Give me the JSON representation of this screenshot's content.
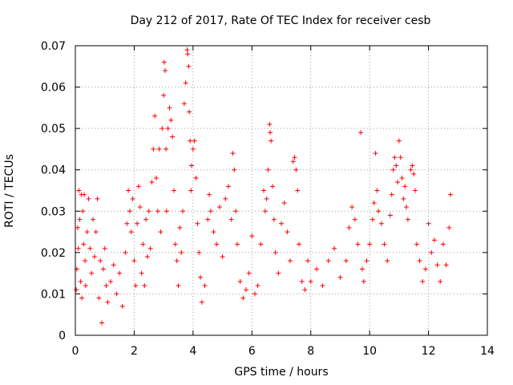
{
  "chart_data": {
    "type": "scatter",
    "title": "Day 212 of 2017, Rate Of TEC Index for receiver cesb",
    "xlabel": "GPS time / hours",
    "ylabel": "ROTI / TECUs",
    "xlim": [
      0,
      14
    ],
    "ylim": [
      0,
      0.07
    ],
    "x_ticks": [
      "0",
      "2",
      "4",
      "6",
      "8",
      "10",
      "12",
      "14"
    ],
    "y_ticks": [
      "0",
      "0.01",
      "0.02",
      "0.03",
      "0.04",
      "0.05",
      "0.06",
      "0.07"
    ],
    "grid": true,
    "marker": "+",
    "series": [
      {
        "name": "cesb",
        "color": "#ff0000",
        "points": [
          [
            0.03,
            0.011
          ],
          [
            0.05,
            0.016
          ],
          [
            0.08,
            0.026
          ],
          [
            0.1,
            0.021
          ],
          [
            0.12,
            0.035
          ],
          [
            0.15,
            0.028
          ],
          [
            0.18,
            0.013
          ],
          [
            0.2,
            0.034
          ],
          [
            0.22,
            0.009
          ],
          [
            0.25,
            0.03
          ],
          [
            0.28,
            0.022
          ],
          [
            0.3,
            0.034
          ],
          [
            0.33,
            0.018
          ],
          [
            0.35,
            0.012
          ],
          [
            0.4,
            0.025
          ],
          [
            0.45,
            0.033
          ],
          [
            0.5,
            0.021
          ],
          [
            0.55,
            0.015
          ],
          [
            0.6,
            0.028
          ],
          [
            0.65,
            0.019
          ],
          [
            0.7,
            0.025
          ],
          [
            0.75,
            0.033
          ],
          [
            0.8,
            0.009
          ],
          [
            0.85,
            0.018
          ],
          [
            0.9,
            0.003
          ],
          [
            0.95,
            0.016
          ],
          [
            1.0,
            0.021
          ],
          [
            1.05,
            0.012
          ],
          [
            1.1,
            0.008
          ],
          [
            1.2,
            0.013
          ],
          [
            1.3,
            0.017
          ],
          [
            1.4,
            0.01
          ],
          [
            1.5,
            0.015
          ],
          [
            1.6,
            0.007
          ],
          [
            1.7,
            0.02
          ],
          [
            1.75,
            0.027
          ],
          [
            1.8,
            0.035
          ],
          [
            1.85,
            0.03
          ],
          [
            1.9,
            0.025
          ],
          [
            1.95,
            0.033
          ],
          [
            2.0,
            0.018
          ],
          [
            2.05,
            0.012
          ],
          [
            2.1,
            0.027
          ],
          [
            2.15,
            0.036
          ],
          [
            2.2,
            0.031
          ],
          [
            2.25,
            0.015
          ],
          [
            2.3,
            0.022
          ],
          [
            2.35,
            0.012
          ],
          [
            2.4,
            0.028
          ],
          [
            2.45,
            0.019
          ],
          [
            2.5,
            0.03
          ],
          [
            2.55,
            0.021
          ],
          [
            2.6,
            0.037
          ],
          [
            2.65,
            0.045
          ],
          [
            2.7,
            0.053
          ],
          [
            2.75,
            0.038
          ],
          [
            2.8,
            0.03
          ],
          [
            2.85,
            0.045
          ],
          [
            2.9,
            0.025
          ],
          [
            2.95,
            0.05
          ],
          [
            3.0,
            0.058
          ],
          [
            3.02,
            0.066
          ],
          [
            3.05,
            0.064
          ],
          [
            3.08,
            0.045
          ],
          [
            3.1,
            0.03
          ],
          [
            3.15,
            0.05
          ],
          [
            3.2,
            0.055
          ],
          [
            3.25,
            0.052
          ],
          [
            3.3,
            0.048
          ],
          [
            3.35,
            0.035
          ],
          [
            3.4,
            0.022
          ],
          [
            3.45,
            0.018
          ],
          [
            3.5,
            0.012
          ],
          [
            3.55,
            0.026
          ],
          [
            3.6,
            0.02
          ],
          [
            3.65,
            0.03
          ],
          [
            3.7,
            0.056
          ],
          [
            3.75,
            0.061
          ],
          [
            3.8,
            0.069
          ],
          [
            3.82,
            0.068
          ],
          [
            3.85,
            0.065
          ],
          [
            3.87,
            0.054
          ],
          [
            3.9,
            0.047
          ],
          [
            3.93,
            0.035
          ],
          [
            3.95,
            0.041
          ],
          [
            4.0,
            0.045
          ],
          [
            4.05,
            0.047
          ],
          [
            4.1,
            0.038
          ],
          [
            4.15,
            0.027
          ],
          [
            4.2,
            0.02
          ],
          [
            4.25,
            0.014
          ],
          [
            4.3,
            0.008
          ],
          [
            4.4,
            0.012
          ],
          [
            4.5,
            0.028
          ],
          [
            4.55,
            0.034
          ],
          [
            4.6,
            0.03
          ],
          [
            4.7,
            0.025
          ],
          [
            4.8,
            0.022
          ],
          [
            4.9,
            0.031
          ],
          [
            5.0,
            0.019
          ],
          [
            5.1,
            0.033
          ],
          [
            5.2,
            0.036
          ],
          [
            5.3,
            0.028
          ],
          [
            5.35,
            0.044
          ],
          [
            5.4,
            0.04
          ],
          [
            5.45,
            0.03
          ],
          [
            5.5,
            0.022
          ],
          [
            5.6,
            0.013
          ],
          [
            5.7,
            0.009
          ],
          [
            5.8,
            0.011
          ],
          [
            5.9,
            0.015
          ],
          [
            6.0,
            0.024
          ],
          [
            6.1,
            0.01
          ],
          [
            6.2,
            0.012
          ],
          [
            6.3,
            0.022
          ],
          [
            6.4,
            0.035
          ],
          [
            6.45,
            0.03
          ],
          [
            6.5,
            0.033
          ],
          [
            6.55,
            0.04
          ],
          [
            6.6,
            0.051
          ],
          [
            6.62,
            0.049
          ],
          [
            6.65,
            0.047
          ],
          [
            6.7,
            0.036
          ],
          [
            6.75,
            0.028
          ],
          [
            6.8,
            0.02
          ],
          [
            6.9,
            0.015
          ],
          [
            7.0,
            0.027
          ],
          [
            7.1,
            0.032
          ],
          [
            7.2,
            0.025
          ],
          [
            7.3,
            0.018
          ],
          [
            7.4,
            0.042
          ],
          [
            7.45,
            0.043
          ],
          [
            7.5,
            0.04
          ],
          [
            7.55,
            0.035
          ],
          [
            7.6,
            0.022
          ],
          [
            7.7,
            0.013
          ],
          [
            7.8,
            0.011
          ],
          [
            7.9,
            0.018
          ],
          [
            8.0,
            0.013
          ],
          [
            8.2,
            0.016
          ],
          [
            8.4,
            0.012
          ],
          [
            8.6,
            0.018
          ],
          [
            8.8,
            0.021
          ],
          [
            9.0,
            0.014
          ],
          [
            9.2,
            0.018
          ],
          [
            9.3,
            0.026
          ],
          [
            9.4,
            0.031
          ],
          [
            9.5,
            0.028
          ],
          [
            9.6,
            0.022
          ],
          [
            9.7,
            0.049
          ],
          [
            9.75,
            0.016
          ],
          [
            9.8,
            0.013
          ],
          [
            9.9,
            0.018
          ],
          [
            10.0,
            0.022
          ],
          [
            10.1,
            0.028
          ],
          [
            10.15,
            0.032
          ],
          [
            10.2,
            0.044
          ],
          [
            10.25,
            0.035
          ],
          [
            10.3,
            0.03
          ],
          [
            10.4,
            0.027
          ],
          [
            10.5,
            0.022
          ],
          [
            10.6,
            0.018
          ],
          [
            10.7,
            0.029
          ],
          [
            10.75,
            0.034
          ],
          [
            10.8,
            0.04
          ],
          [
            10.85,
            0.043
          ],
          [
            10.9,
            0.041
          ],
          [
            10.95,
            0.037
          ],
          [
            11.0,
            0.047
          ],
          [
            11.05,
            0.043
          ],
          [
            11.1,
            0.038
          ],
          [
            11.15,
            0.033
          ],
          [
            11.2,
            0.036
          ],
          [
            11.25,
            0.031
          ],
          [
            11.3,
            0.028
          ],
          [
            11.4,
            0.04
          ],
          [
            11.45,
            0.041
          ],
          [
            11.5,
            0.039
          ],
          [
            11.55,
            0.035
          ],
          [
            11.6,
            0.022
          ],
          [
            11.7,
            0.018
          ],
          [
            11.8,
            0.013
          ],
          [
            11.9,
            0.016
          ],
          [
            12.0,
            0.027
          ],
          [
            12.1,
            0.02
          ],
          [
            12.2,
            0.023
          ],
          [
            12.3,
            0.017
          ],
          [
            12.4,
            0.013
          ],
          [
            12.5,
            0.022
          ],
          [
            12.6,
            0.017
          ],
          [
            12.7,
            0.026
          ],
          [
            12.75,
            0.034
          ]
        ]
      }
    ]
  }
}
